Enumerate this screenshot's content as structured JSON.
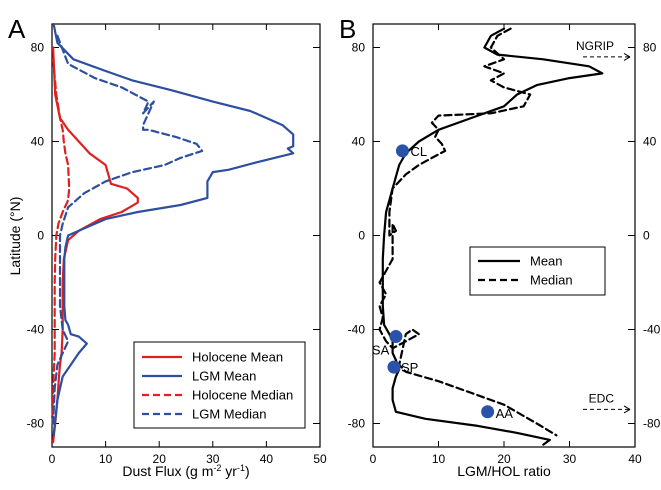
{
  "colors": {
    "holocene": "#e02020",
    "lgm": "#2e4fa0",
    "black": "#000000",
    "site": "#2a52a8"
  },
  "chart_data": [
    {
      "type": "line",
      "panel_label": "A",
      "xlabel": "Dust Flux (g m",
      "xlabel_sup": "-2",
      "xlabel_mid": " yr",
      "xlabel_sup2": "-1",
      "xlabel_end": ")",
      "ylabel": "Latitude (°N)",
      "xlim": [
        0,
        50
      ],
      "ylim": [
        -90,
        90
      ],
      "xticks": [
        0,
        10,
        20,
        30,
        40,
        50
      ],
      "yticks": [
        -80,
        -40,
        0,
        40,
        80
      ],
      "grid": false,
      "legend_position": "bottom-right",
      "series": [
        {
          "name": "Holocene Mean",
          "color_key": "holocene",
          "dash": "solid",
          "x": [
            0.2,
            0.6,
            1.5,
            3,
            5,
            7,
            10,
            11,
            14,
            16,
            16,
            13,
            9,
            5,
            3,
            2.2,
            2,
            2,
            2,
            1.8,
            1.5,
            1.3,
            1,
            0.6,
            0.2
          ],
          "y": [
            80,
            60,
            50,
            45,
            40,
            35,
            30,
            22,
            20,
            16,
            14,
            10,
            7,
            2,
            -2,
            -10,
            -20,
            -30,
            -40,
            -50,
            -55,
            -60,
            -70,
            -80,
            -88
          ]
        },
        {
          "name": "LGM Mean",
          "color_key": "lgm",
          "dash": "solid",
          "x": [
            0.3,
            1,
            4,
            10,
            15,
            22,
            30,
            37,
            40,
            43,
            45,
            45,
            44,
            45,
            38,
            33,
            30,
            29,
            29,
            24,
            16,
            10,
            6,
            3,
            2.5,
            2.3,
            2.3,
            2.3,
            2.5,
            3,
            3.5,
            5,
            6.5,
            5,
            3.5,
            2,
            1,
            0.3
          ],
          "y": [
            90,
            82,
            75,
            70,
            66,
            62,
            57,
            53,
            50,
            47,
            43,
            38,
            37,
            35,
            31,
            28,
            27,
            23,
            16,
            13,
            10,
            7,
            3,
            0,
            -5,
            -10,
            -20,
            -30,
            -36,
            -38,
            -42,
            -43,
            -46,
            -50,
            -55,
            -60,
            -70,
            -85
          ]
        },
        {
          "name": "Holocene Median",
          "color_key": "holocene",
          "dash": "dashed",
          "x": [
            0.2,
            0.8,
            1.5,
            2,
            2.2,
            2.5,
            3,
            3.2,
            3,
            2,
            1.2,
            0.8,
            0.6,
            0.5,
            0.5,
            0.5,
            0.5,
            0.3,
            0.1
          ],
          "y": [
            75,
            60,
            50,
            45,
            40,
            35,
            30,
            20,
            15,
            10,
            5,
            0,
            -10,
            -20,
            -30,
            -40,
            -50,
            -60,
            -80
          ]
        },
        {
          "name": "LGM Median",
          "color_key": "lgm",
          "dash": "dashed",
          "x": [
            1,
            3,
            8,
            13,
            18,
            17,
            19,
            17,
            17,
            18,
            23,
            27,
            28,
            24,
            21,
            15,
            10,
            6,
            3,
            2,
            1.5,
            1.5,
            1.5,
            1.5,
            2,
            3,
            2,
            1,
            0.5,
            0.2
          ],
          "y": [
            85,
            73,
            67,
            63,
            57,
            52,
            57,
            47,
            45,
            45,
            42,
            39,
            36,
            33,
            30,
            27,
            23,
            18,
            12,
            5,
            0,
            -10,
            -20,
            -30,
            -40,
            -45,
            -50,
            -55,
            -65,
            -80
          ]
        }
      ]
    },
    {
      "type": "line",
      "panel_label": "B",
      "xlabel": "LGM/HOL ratio",
      "xlim": [
        0,
        40
      ],
      "ylim": [
        -90,
        90
      ],
      "xticks": [
        0,
        10,
        20,
        30,
        40
      ],
      "yticks": [
        -80,
        -40,
        0,
        40,
        80
      ],
      "grid": false,
      "legend_position": "middle-right",
      "series": [
        {
          "name": "Mean",
          "color_key": "black",
          "dash": "solid",
          "x": [
            20,
            18,
            17,
            19,
            26,
            33,
            35,
            30,
            25,
            22,
            20,
            15,
            10,
            7,
            5,
            4,
            3,
            2,
            1.7,
            1.5,
            1.5,
            1.5,
            1.7,
            2.5,
            3,
            3,
            3.5,
            4,
            3.5,
            3,
            3,
            3.5,
            8,
            16,
            22,
            27,
            26
          ],
          "y": [
            88,
            85,
            80,
            77,
            75,
            72,
            69,
            67,
            64,
            60,
            55,
            50,
            45,
            40,
            35,
            30,
            20,
            10,
            0,
            -10,
            -20,
            -30,
            -38,
            -42,
            -45,
            -50,
            -53,
            -57,
            -60,
            -65,
            -70,
            -75,
            -78,
            -81,
            -84,
            -87,
            -89
          ]
        },
        {
          "name": "Median",
          "color_key": "black",
          "dash": "dashed",
          "x": [
            21,
            19,
            18,
            20,
            17,
            20,
            18,
            20,
            24,
            23,
            18,
            10,
            9,
            10,
            9.5,
            10.5,
            11,
            9,
            7,
            5,
            3,
            2.5,
            2.5,
            3.5,
            3,
            3,
            1,
            2,
            1,
            1.5,
            1,
            2,
            3,
            5,
            7,
            6,
            5,
            4,
            5,
            10,
            15,
            20,
            25,
            28
          ],
          "y": [
            88,
            85,
            80,
            75,
            72,
            69,
            66,
            63,
            60,
            55,
            52,
            51,
            48,
            45,
            42,
            39,
            36,
            33,
            30,
            26,
            20,
            10,
            0,
            2,
            5,
            -10,
            -20,
            -25,
            -30,
            -35,
            -40,
            -45,
            -48,
            -45,
            -42,
            -40,
            -42,
            -55,
            -58,
            -62,
            -67,
            -72,
            -80,
            -85
          ]
        }
      ],
      "sites": [
        {
          "label": "CL",
          "x": 4.5,
          "y": 36
        },
        {
          "label": "SA",
          "x": 3.5,
          "y": -43
        },
        {
          "label": "SP",
          "x": 3.2,
          "y": -56
        },
        {
          "label": "AA",
          "x": 17.5,
          "y": -75
        }
      ],
      "annotations": [
        {
          "label": "NGRIP",
          "y": 76
        },
        {
          "label": "EDC",
          "y": -74
        }
      ]
    }
  ]
}
